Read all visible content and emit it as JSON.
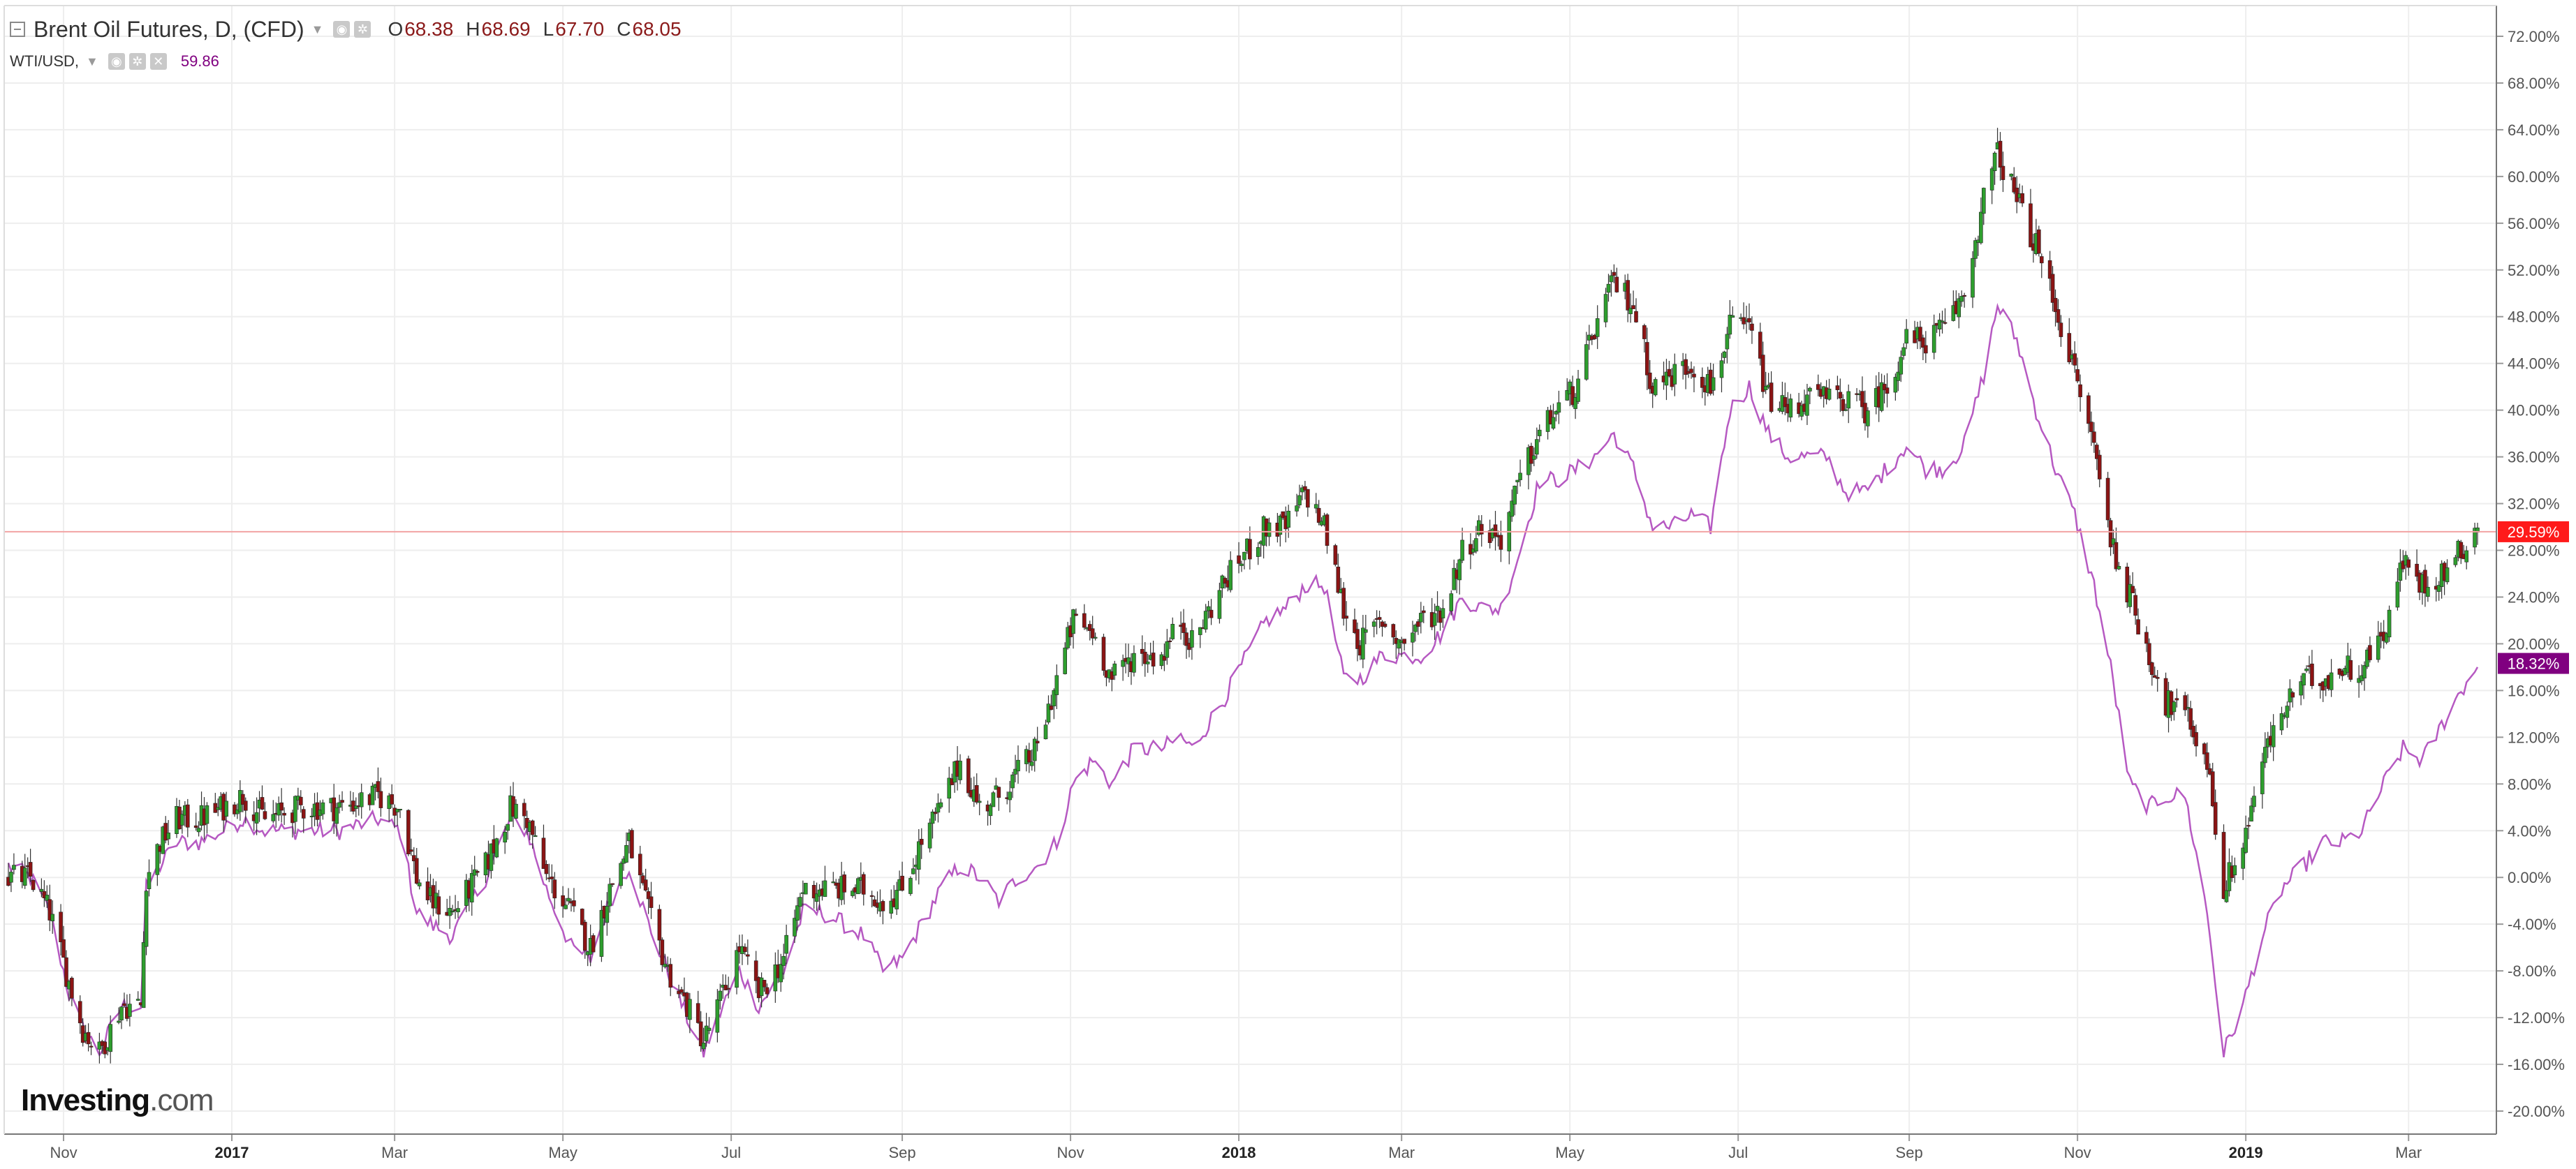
{
  "legend": {
    "main_title": "Brent Oil Futures, D, (CFD)",
    "ohlc": [
      {
        "key": "O",
        "value": "68.38"
      },
      {
        "key": "H",
        "value": "68.69"
      },
      {
        "key": "L",
        "value": "67.70"
      },
      {
        "key": "C",
        "value": "68.05"
      }
    ],
    "sub_title": "WTI/USD,",
    "sub_value": "59.86"
  },
  "logo": {
    "word": "Investing",
    "suffix": ".com"
  },
  "colors": {
    "up": "#2e9e2e",
    "down": "#8b1414",
    "wti_line": "#b659c2",
    "current_line": "#f2a3a3",
    "brent_badge": "#ff1a1a",
    "wti_badge": "#800080",
    "grid": "#eeeeee",
    "axis_text": "#555555"
  },
  "chart_data": {
    "type": "line",
    "title": "Brent Oil Futures, D, (CFD)",
    "y_unit": "percent change",
    "x_tick_labels": [
      "Nov",
      "2017",
      "Mar",
      "May",
      "Jul",
      "Sep",
      "Nov",
      "2018",
      "Mar",
      "May",
      "Jul",
      "Sep",
      "Nov",
      "2019",
      "Mar"
    ],
    "y_tick_labels": [
      "72.00%",
      "68.00%",
      "64.00%",
      "60.00%",
      "56.00%",
      "52.00%",
      "48.00%",
      "44.00%",
      "40.00%",
      "36.00%",
      "32.00%",
      "28.00%",
      "24.00%",
      "20.00%",
      "16.00%",
      "12.00%",
      "8.00%",
      "4.00%",
      "0.00%",
      "-4.00%",
      "-8.00%",
      "-12.00%",
      "-16.00%",
      "-20.00%"
    ],
    "ylim": [
      -22,
      74
    ],
    "x_range": [
      "2016-10-12",
      "2019-03-26"
    ],
    "grid": true,
    "current_values": [
      {
        "series": "Brent Oil Futures",
        "label": "29.59%",
        "value": 29.59
      },
      {
        "series": "WTI/USD",
        "label": "18.32%",
        "value": 18.32
      }
    ],
    "series": [
      {
        "name": "Brent Oil Futures",
        "style": "candlestick",
        "points": [
          [
            "2016-10-12",
            0
          ],
          [
            "2016-10-20",
            0
          ],
          [
            "2016-10-27",
            -3
          ],
          [
            "2016-11-03",
            -9
          ],
          [
            "2016-11-08",
            -13
          ],
          [
            "2016-11-14",
            -15
          ],
          [
            "2016-11-22",
            -11
          ],
          [
            "2016-11-29",
            -11
          ],
          [
            "2016-12-01",
            0
          ],
          [
            "2016-12-06",
            3
          ],
          [
            "2016-12-12",
            5
          ],
          [
            "2016-12-20",
            5
          ],
          [
            "2016-12-29",
            6
          ],
          [
            "2017-01-05",
            7
          ],
          [
            "2017-01-13",
            5
          ],
          [
            "2017-01-26",
            6
          ],
          [
            "2017-02-09",
            6
          ],
          [
            "2017-02-23",
            7
          ],
          [
            "2017-03-03",
            6
          ],
          [
            "2017-03-09",
            0
          ],
          [
            "2017-03-14",
            -2
          ],
          [
            "2017-03-22",
            -3
          ],
          [
            "2017-04-03",
            1
          ],
          [
            "2017-04-12",
            6
          ],
          [
            "2017-04-18",
            5
          ],
          [
            "2017-04-25",
            0
          ],
          [
            "2017-05-04",
            -3
          ],
          [
            "2017-05-11",
            -6
          ],
          [
            "2017-05-18",
            -1
          ],
          [
            "2017-05-25",
            3
          ],
          [
            "2017-06-01",
            -3
          ],
          [
            "2017-06-08",
            -8
          ],
          [
            "2017-06-15",
            -11
          ],
          [
            "2017-06-21",
            -14
          ],
          [
            "2017-06-28",
            -10
          ],
          [
            "2017-07-04",
            -6
          ],
          [
            "2017-07-11",
            -10
          ],
          [
            "2017-07-20",
            -7
          ],
          [
            "2017-07-27",
            -1
          ],
          [
            "2017-08-03",
            -1
          ],
          [
            "2017-08-11",
            -1
          ],
          [
            "2017-08-18",
            -1
          ],
          [
            "2017-08-25",
            -2
          ],
          [
            "2017-09-01",
            -1
          ],
          [
            "2017-09-08",
            3
          ],
          [
            "2017-09-15",
            6
          ],
          [
            "2017-09-22",
            10
          ],
          [
            "2017-09-29",
            6
          ],
          [
            "2017-10-06",
            7
          ],
          [
            "2017-10-13",
            9
          ],
          [
            "2017-10-20",
            11
          ],
          [
            "2017-10-27",
            17
          ],
          [
            "2017-11-02",
            22
          ],
          [
            "2017-11-09",
            21
          ],
          [
            "2017-11-16",
            17
          ],
          [
            "2017-11-24",
            19
          ],
          [
            "2017-12-04",
            19
          ],
          [
            "2017-12-11",
            22
          ],
          [
            "2017-12-15",
            20
          ],
          [
            "2017-12-26",
            25
          ],
          [
            "2018-01-04",
            28
          ],
          [
            "2018-01-11",
            30
          ],
          [
            "2018-01-18",
            30
          ],
          [
            "2018-01-25",
            33
          ],
          [
            "2018-02-01",
            30
          ],
          [
            "2018-02-08",
            23
          ],
          [
            "2018-02-14",
            20
          ],
          [
            "2018-02-22",
            22
          ],
          [
            "2018-03-01",
            20
          ],
          [
            "2018-03-08",
            22
          ],
          [
            "2018-03-16",
            23
          ],
          [
            "2018-03-23",
            28
          ],
          [
            "2018-03-30",
            30
          ],
          [
            "2018-04-06",
            29
          ],
          [
            "2018-04-13",
            34
          ],
          [
            "2018-04-20",
            38
          ],
          [
            "2018-04-26",
            40
          ],
          [
            "2018-05-04",
            42
          ],
          [
            "2018-05-10",
            47
          ],
          [
            "2018-05-17",
            51
          ],
          [
            "2018-05-24",
            49
          ],
          [
            "2018-05-31",
            42
          ],
          [
            "2018-06-07",
            43
          ],
          [
            "2018-06-14",
            44
          ],
          [
            "2018-06-21",
            42
          ],
          [
            "2018-06-28",
            47
          ],
          [
            "2018-07-05",
            47
          ],
          [
            "2018-07-12",
            41
          ],
          [
            "2018-07-19",
            40
          ],
          [
            "2018-07-26",
            41
          ],
          [
            "2018-08-02",
            41
          ],
          [
            "2018-08-09",
            41
          ],
          [
            "2018-08-16",
            40
          ],
          [
            "2018-08-24",
            42
          ],
          [
            "2018-08-31",
            46
          ],
          [
            "2018-09-07",
            46
          ],
          [
            "2018-09-14",
            47
          ],
          [
            "2018-09-21",
            50
          ],
          [
            "2018-09-28",
            58
          ],
          [
            "2018-10-03",
            62
          ],
          [
            "2018-10-10",
            58
          ],
          [
            "2018-10-17",
            54
          ],
          [
            "2018-10-24",
            49
          ],
          [
            "2018-10-31",
            43
          ],
          [
            "2018-11-07",
            37
          ],
          [
            "2018-11-13",
            29
          ],
          [
            "2018-11-20",
            24
          ],
          [
            "2018-11-27",
            19
          ],
          [
            "2018-12-03",
            15
          ],
          [
            "2018-12-10",
            14
          ],
          [
            "2018-12-18",
            10
          ],
          [
            "2018-12-24",
            -1
          ],
          [
            "2018-12-31",
            3
          ],
          [
            "2019-01-07",
            10
          ],
          [
            "2019-01-14",
            14
          ],
          [
            "2019-01-22",
            17
          ],
          [
            "2019-01-29",
            17
          ],
          [
            "2019-02-05",
            18
          ],
          [
            "2019-02-12",
            18
          ],
          [
            "2019-02-20",
            21
          ],
          [
            "2019-02-27",
            27
          ],
          [
            "2019-03-06",
            25
          ],
          [
            "2019-03-13",
            26
          ],
          [
            "2019-03-20",
            28
          ],
          [
            "2019-03-26",
            30
          ]
        ]
      },
      {
        "name": "WTI/USD",
        "style": "line",
        "points": [
          [
            "2016-10-12",
            1
          ],
          [
            "2016-10-20",
            0
          ],
          [
            "2016-10-27",
            -3
          ],
          [
            "2016-11-03",
            -10
          ],
          [
            "2016-11-08",
            -13
          ],
          [
            "2016-11-14",
            -15
          ],
          [
            "2016-11-22",
            -11
          ],
          [
            "2016-11-29",
            -11
          ],
          [
            "2016-12-01",
            -1
          ],
          [
            "2016-12-06",
            1
          ],
          [
            "2016-12-12",
            3
          ],
          [
            "2016-12-20",
            3
          ],
          [
            "2016-12-29",
            4
          ],
          [
            "2017-01-05",
            5
          ],
          [
            "2017-01-13",
            4
          ],
          [
            "2017-01-26",
            4
          ],
          [
            "2017-02-09",
            4
          ],
          [
            "2017-02-23",
            5
          ],
          [
            "2017-03-03",
            4
          ],
          [
            "2017-03-09",
            -3
          ],
          [
            "2017-03-14",
            -4
          ],
          [
            "2017-03-22",
            -5
          ],
          [
            "2017-04-03",
            0
          ],
          [
            "2017-04-12",
            5
          ],
          [
            "2017-04-18",
            4
          ],
          [
            "2017-04-25",
            -1
          ],
          [
            "2017-05-04",
            -6
          ],
          [
            "2017-05-11",
            -7
          ],
          [
            "2017-05-18",
            -2
          ],
          [
            "2017-05-25",
            1
          ],
          [
            "2017-06-01",
            -4
          ],
          [
            "2017-06-08",
            -8
          ],
          [
            "2017-06-15",
            -12
          ],
          [
            "2017-06-21",
            -15
          ],
          [
            "2017-06-28",
            -11
          ],
          [
            "2017-07-04",
            -8
          ],
          [
            "2017-07-11",
            -11
          ],
          [
            "2017-07-20",
            -8
          ],
          [
            "2017-07-27",
            -3
          ],
          [
            "2017-08-03",
            -3
          ],
          [
            "2017-08-11",
            -4
          ],
          [
            "2017-08-18",
            -5
          ],
          [
            "2017-08-25",
            -8
          ],
          [
            "2017-09-01",
            -7
          ],
          [
            "2017-09-08",
            -4
          ],
          [
            "2017-09-15",
            -1
          ],
          [
            "2017-09-22",
            1
          ],
          [
            "2017-09-29",
            0
          ],
          [
            "2017-10-06",
            -2
          ],
          [
            "2017-10-13",
            0
          ],
          [
            "2017-10-20",
            1
          ],
          [
            "2017-10-27",
            3
          ],
          [
            "2017-11-02",
            8
          ],
          [
            "2017-11-09",
            10
          ],
          [
            "2017-11-16",
            8
          ],
          [
            "2017-11-24",
            11
          ],
          [
            "2017-12-04",
            11
          ],
          [
            "2017-12-11",
            12
          ],
          [
            "2017-12-15",
            11
          ],
          [
            "2017-12-26",
            15
          ],
          [
            "2018-01-04",
            19
          ],
          [
            "2018-01-11",
            22
          ],
          [
            "2018-01-18",
            23
          ],
          [
            "2018-01-25",
            25
          ],
          [
            "2018-02-01",
            25
          ],
          [
            "2018-02-08",
            17
          ],
          [
            "2018-02-14",
            17
          ],
          [
            "2018-02-22",
            19
          ],
          [
            "2018-03-01",
            19
          ],
          [
            "2018-03-08",
            19
          ],
          [
            "2018-03-16",
            21
          ],
          [
            "2018-03-23",
            24
          ],
          [
            "2018-03-30",
            23
          ],
          [
            "2018-04-06",
            23
          ],
          [
            "2018-04-13",
            28
          ],
          [
            "2018-04-20",
            34
          ],
          [
            "2018-04-26",
            34
          ],
          [
            "2018-05-04",
            35
          ],
          [
            "2018-05-10",
            36
          ],
          [
            "2018-05-17",
            38
          ],
          [
            "2018-05-24",
            35
          ],
          [
            "2018-05-31",
            30
          ],
          [
            "2018-06-07",
            30
          ],
          [
            "2018-06-14",
            31
          ],
          [
            "2018-06-21",
            30
          ],
          [
            "2018-06-28",
            40
          ],
          [
            "2018-07-05",
            42
          ],
          [
            "2018-07-12",
            38
          ],
          [
            "2018-07-19",
            36
          ],
          [
            "2018-07-26",
            36
          ],
          [
            "2018-08-02",
            36
          ],
          [
            "2018-08-09",
            33
          ],
          [
            "2018-08-16",
            33
          ],
          [
            "2018-08-24",
            35
          ],
          [
            "2018-08-31",
            37
          ],
          [
            "2018-09-07",
            35
          ],
          [
            "2018-09-14",
            35
          ],
          [
            "2018-09-21",
            37
          ],
          [
            "2018-09-28",
            43
          ],
          [
            "2018-10-03",
            49
          ],
          [
            "2018-10-10",
            46
          ],
          [
            "2018-10-17",
            40
          ],
          [
            "2018-10-24",
            35
          ],
          [
            "2018-10-31",
            31
          ],
          [
            "2018-11-07",
            25
          ],
          [
            "2018-11-13",
            18
          ],
          [
            "2018-11-20",
            8
          ],
          [
            "2018-11-27",
            6
          ],
          [
            "2018-12-03",
            7
          ],
          [
            "2018-12-10",
            7
          ],
          [
            "2018-12-18",
            -3
          ],
          [
            "2018-12-24",
            -15
          ],
          [
            "2018-12-31",
            -11
          ],
          [
            "2019-01-07",
            -5
          ],
          [
            "2019-01-14",
            -1
          ],
          [
            "2019-01-22",
            1
          ],
          [
            "2019-01-29",
            3
          ],
          [
            "2019-02-05",
            3
          ],
          [
            "2019-02-12",
            4
          ],
          [
            "2019-02-20",
            8
          ],
          [
            "2019-02-27",
            11
          ],
          [
            "2019-03-06",
            10
          ],
          [
            "2019-03-13",
            13
          ],
          [
            "2019-03-20",
            16
          ],
          [
            "2019-03-26",
            18
          ]
        ]
      }
    ]
  }
}
